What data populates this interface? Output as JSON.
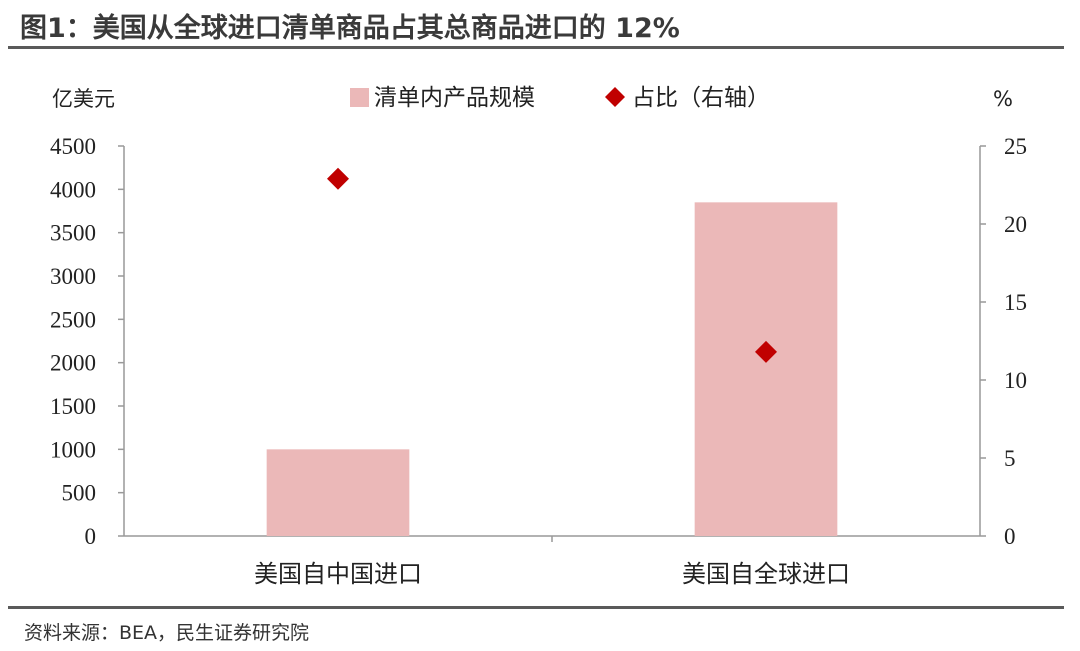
{
  "title": "图1：美国从全球进口清单商品占其总商品进口的 12%",
  "source": "资料来源：BEA，民生证券研究院",
  "chart_data": {
    "type": "bar",
    "categories": [
      "美国自中国进口",
      "美国自全球进口"
    ],
    "series": [
      {
        "name": "清单内产品规模",
        "kind": "bar",
        "axis": "left",
        "values": [
          1000,
          3850
        ]
      },
      {
        "name": "占比（右轴）",
        "kind": "scatter",
        "axis": "right",
        "values": [
          22.9,
          11.8
        ]
      }
    ],
    "left_axis": {
      "unit": "亿美元",
      "ylim": [
        0,
        4500
      ],
      "ticks": [
        "0",
        "500",
        "1000",
        "1500",
        "2000",
        "2500",
        "3000",
        "3500",
        "4000",
        "4500"
      ]
    },
    "right_axis": {
      "unit": "%",
      "ylim": [
        0,
        25
      ],
      "ticks": [
        "0",
        "5",
        "10",
        "15",
        "20",
        "25"
      ]
    },
    "legend_position": "top-center",
    "grid": false,
    "colors": {
      "bar": "#ebb8b8",
      "marker": "#c00000",
      "axis": "#999999"
    }
  }
}
